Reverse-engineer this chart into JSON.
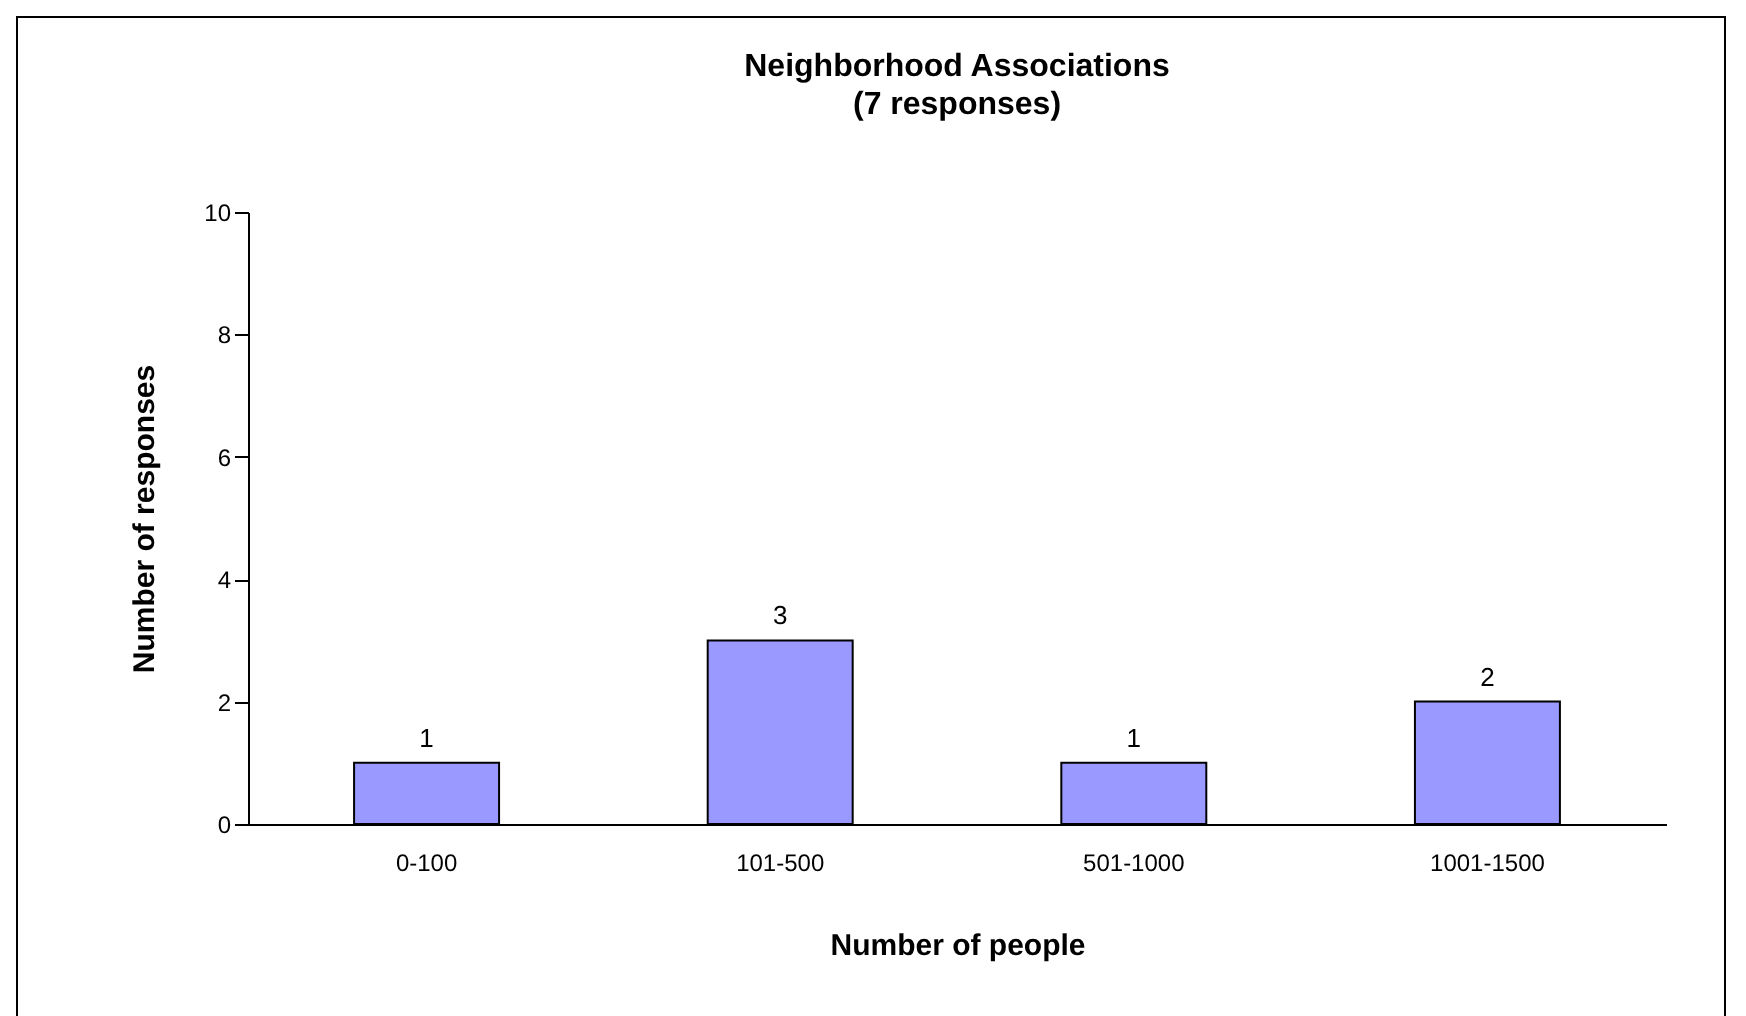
{
  "chart_data": {
    "type": "bar",
    "title": "Neighborhood Associations",
    "subtitle": "(7 responses)",
    "xlabel": "Number of people",
    "ylabel": "Number of responses",
    "categories": [
      "0-100",
      "101-500",
      "501-1000",
      "1001-1500"
    ],
    "values": [
      1,
      3,
      1,
      2
    ],
    "color": "#9999ff",
    "ylim": [
      0,
      10
    ],
    "yticks": [
      0,
      2,
      4,
      6,
      8,
      10
    ],
    "grid": false,
    "data_labels": true
  }
}
